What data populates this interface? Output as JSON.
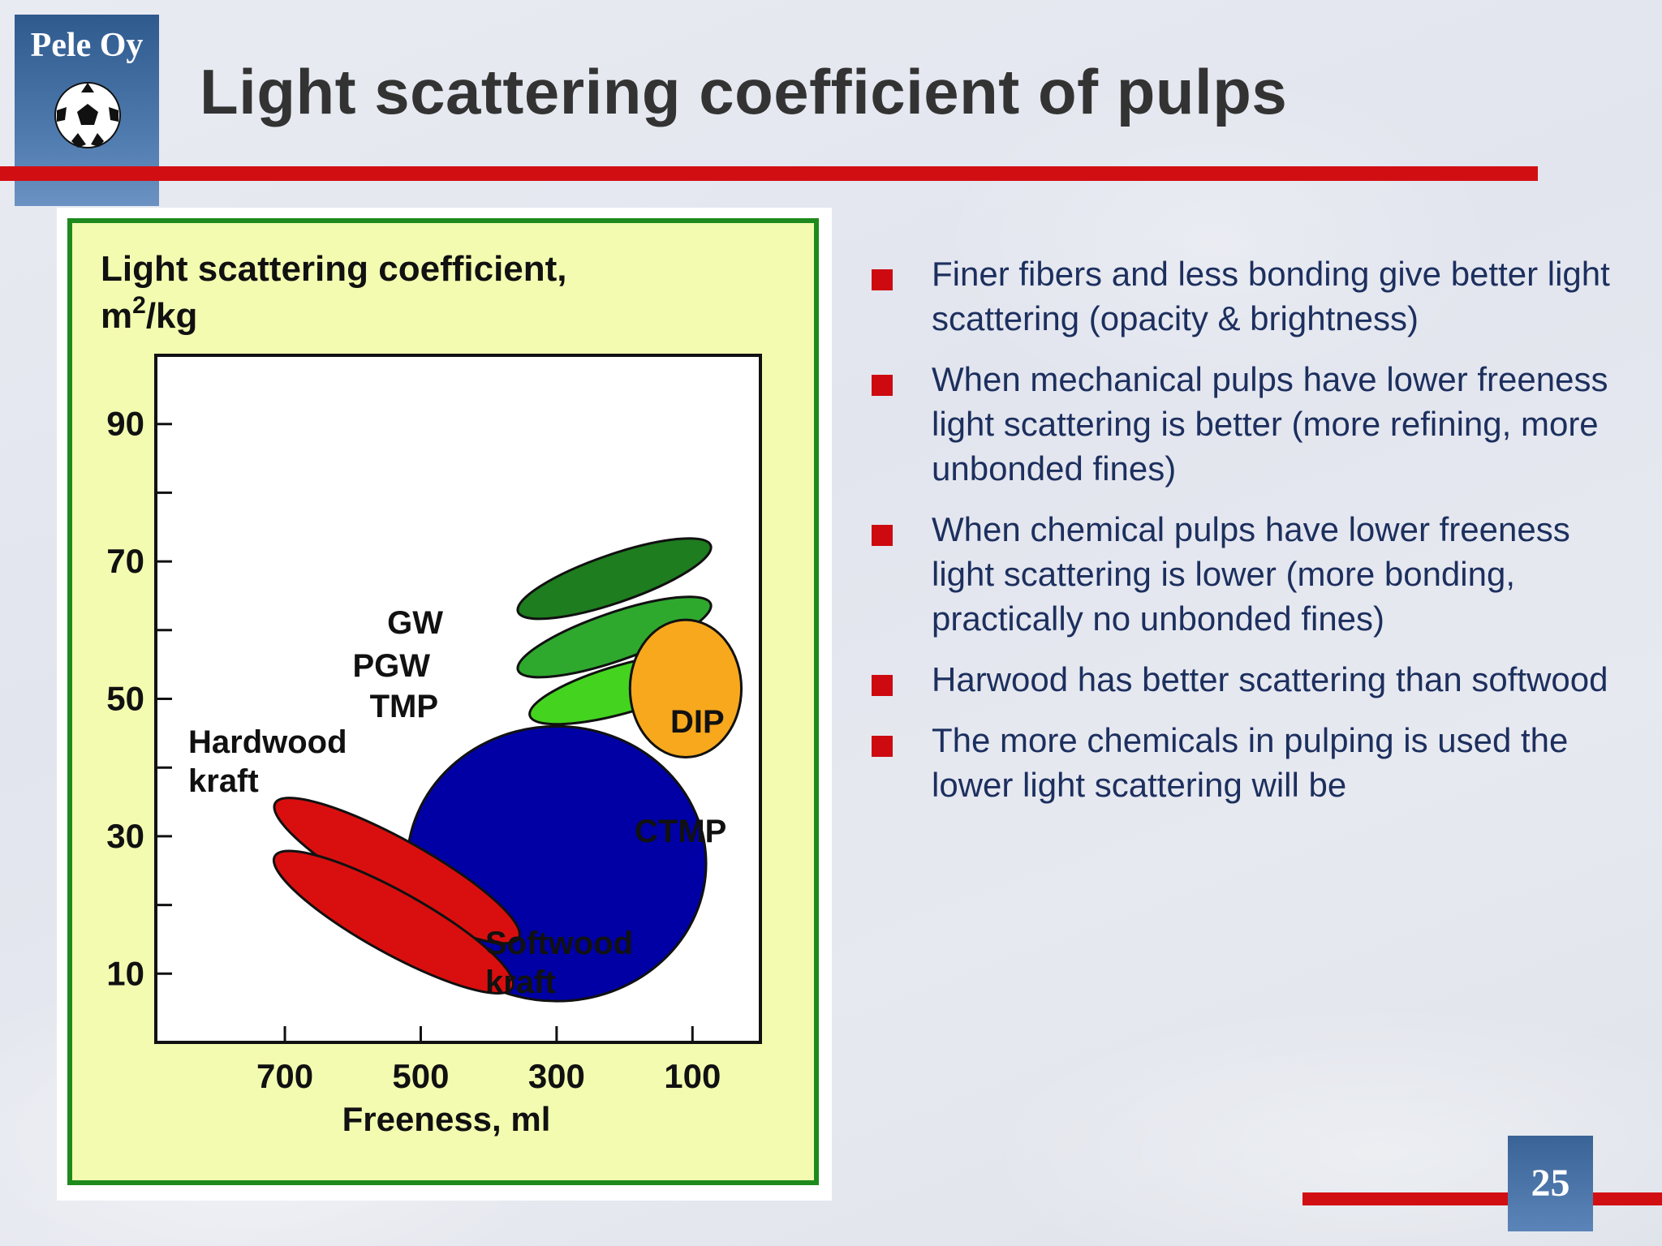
{
  "logo": {
    "text": "Pele Oy"
  },
  "slide": {
    "title": "Light scattering coefficient of pulps",
    "page_number": "25",
    "bullets": [
      "Finer fibers and less bonding give better light scattering (opacity & brightness)",
      "When mechanical pulps have lower freeness light scattering is better (more refining, more unbonded fines)",
      "When chemical pulps have lower freeness light scattering is lower (more bonding, practically no unbonded fines)",
      "Harwood has better scattering than softwood",
      "The more chemicals in pulping is used the lower light scattering will be"
    ]
  },
  "colors": {
    "accent_red": "#d10f13",
    "title_text": "#333333",
    "bullet_text": "#1c2f5e",
    "chart_background": "#f3fbb0",
    "chart_border": "#1e8a1e"
  },
  "chart_data": {
    "type": "scatter",
    "title": "Light scattering coefficient, m2/kg",
    "title_main": "Light scattering coefficient,",
    "title_unit": "m",
    "title_unit_sup": "2",
    "title_unit_rest": "/kg",
    "xlabel": "Freeness, ml",
    "ylabel": "Light scattering coefficient, m2/kg",
    "x_reversed": true,
    "xlim": [
      890,
      0
    ],
    "ylim": [
      0,
      100
    ],
    "x_ticks": [
      "700",
      "500",
      "300",
      "100"
    ],
    "x_tick_values": [
      700,
      500,
      300,
      100
    ],
    "y_ticks": [
      "90",
      "70",
      "50",
      "30",
      "10"
    ],
    "y_tick_values": [
      90,
      70,
      50,
      30,
      10
    ],
    "region_labels": {
      "gw": "GW",
      "pgw": "PGW",
      "tmp": "TMP",
      "dip": "DIP",
      "hardwood": "Hardwood",
      "hardwood_2": "kraft",
      "ctmp": "CTMP",
      "softwood": "Softwood",
      "softwood_2": "kraft"
    },
    "regions": [
      {
        "name": "GW",
        "color": "#1e7d1e",
        "cx": 215,
        "cy": 67.5,
        "rx": 150,
        "ry": 3.5,
        "rot": -19
      },
      {
        "name": "PGW",
        "color": "#2ea92e",
        "cx": 215,
        "cy": 59,
        "rx": 150,
        "ry": 3.5,
        "rot": -19
      },
      {
        "name": "TMP",
        "color": "#44d41f",
        "cx": 200,
        "cy": 51.5,
        "rx": 145,
        "ry": 3.5,
        "rot": -16
      },
      {
        "name": "DIP",
        "color": "#f7a81d",
        "cx": 110,
        "cy": 51.5,
        "rx": 82,
        "ry": 10,
        "rot": 0
      },
      {
        "name": "CTMP",
        "color": "#0000a5",
        "cx": 300,
        "cy": 26,
        "rx": 220,
        "ry": 20,
        "rot": 0
      },
      {
        "name": "Hardwood kraft",
        "color": "#d90f0f",
        "cx": 535,
        "cy": 25,
        "rx": 205,
        "ry": 4.5,
        "rot": 29
      },
      {
        "name": "Softwood kraft",
        "color": "#d90f0f",
        "cx": 540,
        "cy": 17.5,
        "rx": 200,
        "ry": 4.5,
        "rot": 29
      }
    ]
  }
}
